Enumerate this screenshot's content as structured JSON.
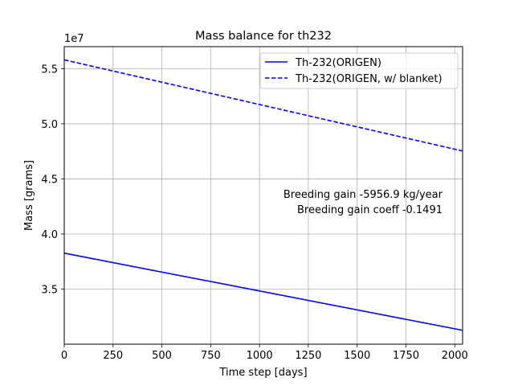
{
  "chart_data": {
    "type": "line",
    "title": "Mass balance for th232",
    "xlabel": "Time step [days]",
    "ylabel": "Mass [grams]",
    "y_scale_label": "1e7",
    "xlim": [
      0,
      2040
    ],
    "ylim": [
      3.0,
      5.7
    ],
    "x_ticks": [
      0,
      250,
      500,
      750,
      1000,
      1250,
      1500,
      1750,
      2000
    ],
    "x_tick_labels": [
      "0",
      "250",
      "500",
      "750",
      "1000",
      "1250",
      "1500",
      "1750",
      "2000"
    ],
    "y_ticks": [
      3.5,
      4.0,
      4.5,
      5.0,
      5.5
    ],
    "y_tick_labels": [
      "3.5",
      "4.0",
      "4.5",
      "5.0",
      "5.5"
    ],
    "grid": true,
    "legend_position": "top-right",
    "series": [
      {
        "name": "Th-232(ORIGEN)",
        "color": "#0000ff",
        "dash": "solid",
        "x": [
          0,
          2040
        ],
        "values": [
          3.826,
          3.126
        ]
      },
      {
        "name": "Th-232(ORIGEN, w/ blanket)",
        "color": "#0000ff",
        "dash": "dashed",
        "x": [
          0,
          2040
        ],
        "values": [
          5.58,
          4.753
        ]
      }
    ],
    "annotations": [
      "Breeding gain  -5956.9 kg/year",
      "Breeding gain coeff  -0.1491"
    ]
  }
}
